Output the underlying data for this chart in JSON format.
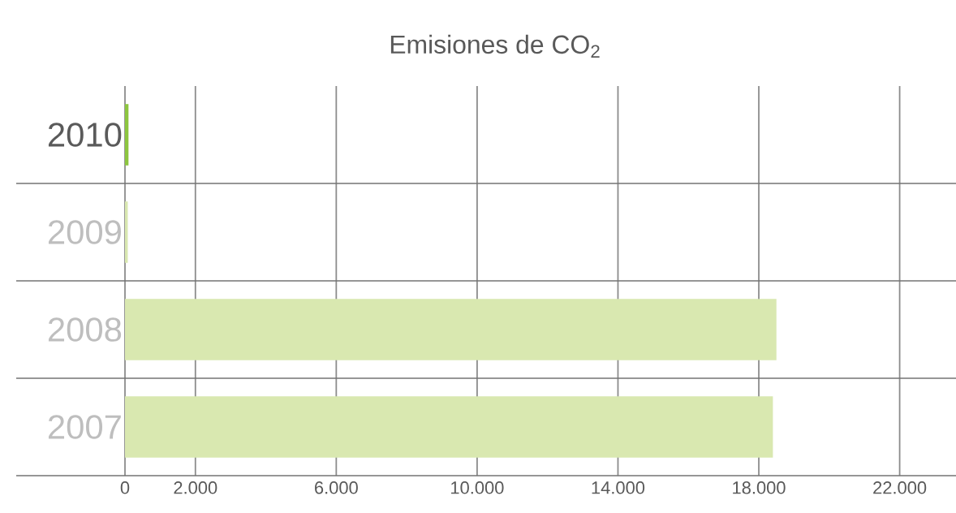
{
  "chart_data": {
    "type": "bar",
    "orientation": "horizontal",
    "title": "Emisiones de CO$_{2}$",
    "categories": [
      "2010",
      "2009",
      "2008",
      "2007"
    ],
    "values": [
      100,
      80,
      18500,
      18400
    ],
    "colors": [
      "#8dc63f",
      "#d9e8b0",
      "#d9e8b0",
      "#d9e8b0"
    ],
    "xlim": [
      0,
      23600
    ],
    "xticks": [
      0,
      {
        "value": 2000,
        "label": "2.000"
      },
      {
        "value": 6000,
        "label": "6.000"
      },
      {
        "value": 10000,
        "label": "10.000"
      },
      {
        "value": 14000,
        "label": "14.000"
      },
      {
        "value": 18000,
        "label": "18.000"
      },
      {
        "value": 22000,
        "label": "22.000"
      }
    ],
    "grid": "x"
  }
}
